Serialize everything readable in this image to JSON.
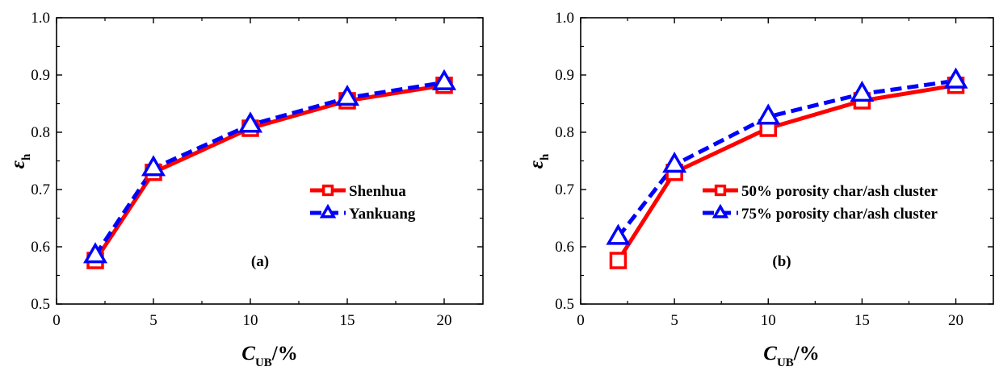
{
  "colors": {
    "series_1": "#ff0000",
    "series_2": "#0000ff",
    "axes": "#000000"
  },
  "chart_data": [
    {
      "type": "line",
      "panel_label": "(a)",
      "xlabel": {
        "main": "C",
        "sub": "UB",
        "unit": "/%"
      },
      "ylabel": {
        "main": "ε",
        "sub": "h"
      },
      "xlim": [
        0,
        22
      ],
      "ylim": [
        0.5,
        1.0
      ],
      "xticks": [
        "0",
        "5",
        "10",
        "15",
        "20"
      ],
      "yticks": [
        "0.5",
        "0.6",
        "0.7",
        "0.8",
        "0.9",
        "1.0"
      ],
      "legend_position": "right",
      "x": [
        2,
        5,
        10,
        15,
        20
      ],
      "series": [
        {
          "name": "Shenhua",
          "values": [
            0.576,
            0.73,
            0.807,
            0.855,
            0.882
          ],
          "marker": "square",
          "line": "solid",
          "color": "#ff0000"
        },
        {
          "name": "Yankuang",
          "values": [
            0.585,
            0.737,
            0.813,
            0.86,
            0.887
          ],
          "marker": "triangle",
          "line": "dashed",
          "color": "#0000ff"
        }
      ]
    },
    {
      "type": "line",
      "panel_label": "(b)",
      "xlabel": {
        "main": "C",
        "sub": "UB",
        "unit": "/%"
      },
      "ylabel": {
        "main": "ε",
        "sub": "h"
      },
      "xlim": [
        0,
        22
      ],
      "ylim": [
        0.5,
        1.0
      ],
      "xticks": [
        "0",
        "5",
        "10",
        "15",
        "20"
      ],
      "yticks": [
        "0.5",
        "0.6",
        "0.7",
        "0.8",
        "0.9",
        "1.0"
      ],
      "legend_position": "right",
      "x": [
        2,
        5,
        10,
        15,
        20
      ],
      "series": [
        {
          "name": "50% porosity char/ash cluster",
          "values": [
            0.576,
            0.73,
            0.807,
            0.855,
            0.882
          ],
          "marker": "square",
          "line": "solid",
          "color": "#ff0000"
        },
        {
          "name": "75% porosity char/ash cluster",
          "values": [
            0.617,
            0.743,
            0.827,
            0.867,
            0.89
          ],
          "marker": "triangle",
          "line": "dashed",
          "color": "#0000ff"
        }
      ]
    }
  ]
}
